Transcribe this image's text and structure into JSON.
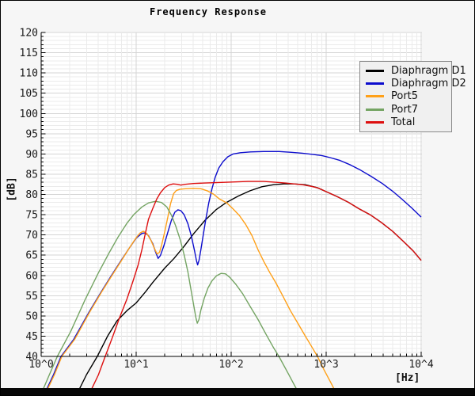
{
  "window": {
    "background": "#f6f6f6",
    "plot_background": "#ffffff",
    "border_color": "#000000",
    "footer_color": "#070707",
    "grid_minor_color": "#ebebeb",
    "grid_major_color": "#d5d5d5",
    "axis_color": "#000000",
    "tick_label_color": "#1a1a1a"
  },
  "title": "Frequency Response",
  "axes": {
    "x": {
      "unit_label": "[Hz]",
      "scale": "log10",
      "tick_labels": [
        "10^0",
        "10^1",
        "10^2",
        "10^3",
        "10^4"
      ],
      "tick_exponents": [
        0,
        1,
        2,
        3,
        4
      ]
    },
    "y": {
      "unit_label": "[dB]",
      "min": 40,
      "max": 120,
      "major_step": 5,
      "minor_step": 1,
      "tick_labels": [
        "120",
        "115",
        "110",
        "105",
        "100",
        "95",
        "90",
        "85",
        "80",
        "75",
        "70",
        "65",
        "60",
        "55",
        "50",
        "45",
        "40"
      ],
      "tick_values": [
        120,
        115,
        110,
        105,
        100,
        95,
        90,
        85,
        80,
        75,
        70,
        65,
        60,
        55,
        50,
        45,
        40
      ]
    }
  },
  "legend": {
    "items": [
      {
        "label": "Diaphragm D1",
        "color": "#000000"
      },
      {
        "label": "Diaphragm D2",
        "color": "#0c0ccd"
      },
      {
        "label": "Port5",
        "color": "#ffa018"
      },
      {
        "label": "Port7",
        "color": "#74a463"
      },
      {
        "label": "Total",
        "color": "#dd0f0f"
      }
    ]
  },
  "chart_data": {
    "type": "line",
    "title": "Frequency Response",
    "xlabel": "[Hz]",
    "ylabel": "[dB]",
    "x_scale": "log10",
    "x_range_hz": [
      1,
      10000
    ],
    "y_range_db": [
      40,
      120
    ],
    "grid": "major+minor",
    "legend_position": "top-right",
    "series": [
      {
        "name": "Diaphragm D1",
        "color": "#000000",
        "points": [
          [
            2.3,
            30
          ],
          [
            3.0,
            35.5
          ],
          [
            3.9,
            40
          ],
          [
            5.0,
            45
          ],
          [
            6.3,
            48.8
          ],
          [
            8.0,
            51.3
          ],
          [
            10,
            53.2
          ],
          [
            12.5,
            55.9
          ],
          [
            15,
            58.3
          ],
          [
            20,
            61.8
          ],
          [
            25,
            64.2
          ],
          [
            32,
            67.2
          ],
          [
            40,
            70.2
          ],
          [
            53,
            73.6
          ],
          [
            70,
            76.3
          ],
          [
            89,
            78.0
          ],
          [
            119,
            79.6
          ],
          [
            158,
            80.9
          ],
          [
            210,
            81.9
          ],
          [
            280,
            82.4
          ],
          [
            360,
            82.6
          ],
          [
            450,
            82.6
          ],
          [
            600,
            82.4
          ],
          [
            800,
            81.7
          ],
          [
            1040,
            80.5
          ],
          [
            1300,
            79.5
          ],
          [
            1700,
            78.1
          ],
          [
            2200,
            76.5
          ],
          [
            2900,
            75.0
          ],
          [
            3800,
            73.1
          ],
          [
            5000,
            70.9
          ],
          [
            6500,
            68.4
          ],
          [
            8200,
            66.1
          ],
          [
            10000,
            63.7
          ]
        ]
      },
      {
        "name": "Diaphragm D2",
        "color": "#0c0ccd",
        "points": [
          [
            1.05,
            30
          ],
          [
            1.35,
            35.5
          ],
          [
            1.62,
            40
          ],
          [
            2.2,
            44.2
          ],
          [
            3.2,
            51
          ],
          [
            4.3,
            56
          ],
          [
            5.5,
            60
          ],
          [
            7,
            63.8
          ],
          [
            8.5,
            66.8
          ],
          [
            10,
            69.2
          ],
          [
            11.5,
            70.4
          ],
          [
            12.5,
            70.5
          ],
          [
            13.5,
            69.8
          ],
          [
            15,
            67.8
          ],
          [
            16,
            65.8
          ],
          [
            17,
            64.2
          ],
          [
            18,
            64.9
          ],
          [
            19.5,
            67.2
          ],
          [
            21.5,
            70.6
          ],
          [
            23.5,
            73.6
          ],
          [
            25.5,
            75.6
          ],
          [
            27.5,
            76.2
          ],
          [
            29.5,
            76.0
          ],
          [
            32,
            75.0
          ],
          [
            35,
            72.8
          ],
          [
            38,
            69.8
          ],
          [
            41,
            66.3
          ],
          [
            43,
            63.8
          ],
          [
            44.3,
            62.6
          ],
          [
            46,
            63.8
          ],
          [
            48,
            66.3
          ],
          [
            51,
            70.2
          ],
          [
            54,
            73.8
          ],
          [
            58,
            77.8
          ],
          [
            63,
            81.5
          ],
          [
            68,
            84.3
          ],
          [
            74,
            86.5
          ],
          [
            82,
            88.1
          ],
          [
            92,
            89.3
          ],
          [
            105,
            90.0
          ],
          [
            125,
            90.3
          ],
          [
            160,
            90.5
          ],
          [
            220,
            90.6
          ],
          [
            320,
            90.6
          ],
          [
            430,
            90.4
          ],
          [
            560,
            90.2
          ],
          [
            720,
            89.9
          ],
          [
            900,
            89.6
          ],
          [
            1100,
            89.1
          ],
          [
            1400,
            88.4
          ],
          [
            1800,
            87.3
          ],
          [
            2300,
            86.0
          ],
          [
            3000,
            84.4
          ],
          [
            3900,
            82.7
          ],
          [
            5000,
            80.8
          ],
          [
            6300,
            78.8
          ],
          [
            8000,
            76.6
          ],
          [
            10000,
            74.4
          ]
        ]
      },
      {
        "name": "Port5",
        "color": "#ffa018",
        "points": [
          [
            1.07,
            30
          ],
          [
            1.38,
            35.5
          ],
          [
            1.65,
            40
          ],
          [
            2.25,
            44.2
          ],
          [
            3.25,
            51
          ],
          [
            4.35,
            56
          ],
          [
            5.6,
            60.1
          ],
          [
            7.1,
            63.9
          ],
          [
            8.6,
            67.0
          ],
          [
            10,
            69.3
          ],
          [
            11,
            70.5
          ],
          [
            11.9,
            70.9
          ],
          [
            13,
            70.3
          ],
          [
            14.3,
            68.7
          ],
          [
            15.5,
            66.8
          ],
          [
            16.6,
            65.3
          ],
          [
            17.6,
            65.7
          ],
          [
            18.6,
            67.6
          ],
          [
            20,
            70.8
          ],
          [
            21.5,
            74.3
          ],
          [
            23,
            77.7
          ],
          [
            24.8,
            80.2
          ],
          [
            26.5,
            81.0
          ],
          [
            29,
            81.3
          ],
          [
            33,
            81.4
          ],
          [
            40,
            81.5
          ],
          [
            48,
            81.4
          ],
          [
            56,
            80.9
          ],
          [
            65,
            80.1
          ],
          [
            75,
            78.9
          ],
          [
            90,
            77.9
          ],
          [
            105,
            76.4
          ],
          [
            122,
            74.8
          ],
          [
            142,
            72.6
          ],
          [
            165,
            69.9
          ],
          [
            192,
            66.3
          ],
          [
            222,
            63.3
          ],
          [
            255,
            60.7
          ],
          [
            295,
            58.2
          ],
          [
            350,
            54.9
          ],
          [
            420,
            51.3
          ],
          [
            500,
            48.3
          ],
          [
            600,
            45.1
          ],
          [
            700,
            42.5
          ],
          [
            810,
            40
          ],
          [
            950,
            36.7
          ],
          [
            1150,
            33.0
          ],
          [
            1320,
            30.2
          ]
        ]
      },
      {
        "name": "Port7",
        "color": "#74a463",
        "points": [
          [
            0.97,
            30
          ],
          [
            1.22,
            35.5
          ],
          [
            1.48,
            40
          ],
          [
            2.05,
            46.2
          ],
          [
            2.9,
            54
          ],
          [
            4.0,
            60.6
          ],
          [
            5.2,
            65.6
          ],
          [
            6.5,
            69.6
          ],
          [
            8.0,
            72.9
          ],
          [
            9.5,
            75.1
          ],
          [
            11.5,
            76.9
          ],
          [
            13.5,
            77.9
          ],
          [
            16,
            78.3
          ],
          [
            18.5,
            78.0
          ],
          [
            21,
            76.9
          ],
          [
            23.5,
            74.9
          ],
          [
            26,
            72.3
          ],
          [
            29,
            68.9
          ],
          [
            32,
            65.1
          ],
          [
            35,
            60.9
          ],
          [
            38,
            56.1
          ],
          [
            40.5,
            52.4
          ],
          [
            42.5,
            49.6
          ],
          [
            44,
            48.2
          ],
          [
            45.8,
            49.1
          ],
          [
            48,
            51.4
          ],
          [
            52,
            54.3
          ],
          [
            57,
            56.9
          ],
          [
            63,
            58.7
          ],
          [
            70,
            59.9
          ],
          [
            78,
            60.5
          ],
          [
            87,
            60.4
          ],
          [
            97,
            59.5
          ],
          [
            112,
            57.8
          ],
          [
            132,
            55.5
          ],
          [
            158,
            52.4
          ],
          [
            192,
            49.1
          ],
          [
            230,
            45.7
          ],
          [
            280,
            42.1
          ],
          [
            318,
            40
          ],
          [
            390,
            36.2
          ],
          [
            470,
            32.6
          ],
          [
            520,
            30.7
          ]
        ]
      },
      {
        "name": "Total",
        "color": "#dd0f0f",
        "points": [
          [
            3.1,
            30
          ],
          [
            4.0,
            35.4
          ],
          [
            4.72,
            40
          ],
          [
            5.6,
            44.6
          ],
          [
            6.7,
            49.6
          ],
          [
            8.0,
            54.2
          ],
          [
            9.2,
            58.4
          ],
          [
            10.5,
            62.6
          ],
          [
            11.5,
            66.4
          ],
          [
            12.5,
            70.4
          ],
          [
            13.5,
            73.9
          ],
          [
            15,
            76.6
          ],
          [
            16.5,
            78.9
          ],
          [
            18,
            80.4
          ],
          [
            20,
            81.7
          ],
          [
            22,
            82.3
          ],
          [
            24.5,
            82.6
          ],
          [
            27,
            82.5
          ],
          [
            29.5,
            82.3
          ],
          [
            33,
            82.5
          ],
          [
            40,
            82.7
          ],
          [
            50,
            82.8
          ],
          [
            65,
            82.9
          ],
          [
            85,
            83.0
          ],
          [
            110,
            83.1
          ],
          [
            150,
            83.2
          ],
          [
            220,
            83.2
          ],
          [
            300,
            83.0
          ],
          [
            380,
            82.8
          ],
          [
            460,
            82.6
          ],
          [
            560,
            82.4
          ],
          [
            700,
            82.0
          ],
          [
            820,
            81.6
          ],
          [
            1040,
            80.5
          ],
          [
            1300,
            79.5
          ],
          [
            1700,
            78.1
          ],
          [
            2200,
            76.5
          ],
          [
            2900,
            75.0
          ],
          [
            3800,
            73.1
          ],
          [
            5000,
            70.9
          ],
          [
            6500,
            68.4
          ],
          [
            8200,
            66.1
          ],
          [
            10000,
            63.7
          ]
        ]
      }
    ]
  }
}
